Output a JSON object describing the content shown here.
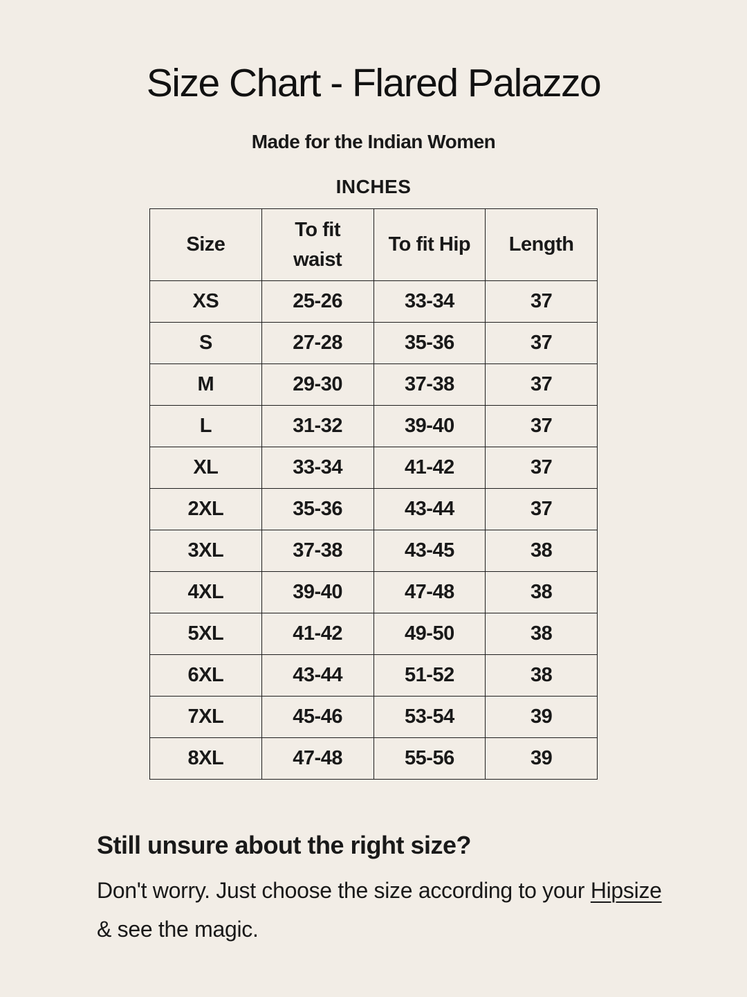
{
  "page": {
    "title": "Size Chart - Flared Palazzo",
    "subtitle": "Made for the Indian Women",
    "unit_label": "INCHES"
  },
  "size_table": {
    "columns": [
      "Size",
      "To fit waist",
      "To fit Hip",
      "Length"
    ],
    "rows": [
      [
        "XS",
        "25-26",
        "33-34",
        "37"
      ],
      [
        "S",
        "27-28",
        "35-36",
        "37"
      ],
      [
        "M",
        "29-30",
        "37-38",
        "37"
      ],
      [
        "L",
        "31-32",
        "39-40",
        "37"
      ],
      [
        "XL",
        "33-34",
        "41-42",
        "37"
      ],
      [
        "2XL",
        "35-36",
        "43-44",
        "37"
      ],
      [
        "3XL",
        "37-38",
        "43-45",
        "38"
      ],
      [
        "4XL",
        "39-40",
        "47-48",
        "38"
      ],
      [
        "5XL",
        "41-42",
        "49-50",
        "38"
      ],
      [
        "6XL",
        "43-44",
        "51-52",
        "38"
      ],
      [
        "7XL",
        "45-46",
        "53-54",
        "39"
      ],
      [
        "8XL",
        "47-48",
        "55-56",
        "39"
      ]
    ]
  },
  "footer": {
    "heading": "Still unsure about the right size?",
    "body_before": "Don't worry. Just choose the size according to your ",
    "link_text": "Hipsize",
    "body_after": " & see the magic."
  },
  "colors": {
    "background": "#f2ede6",
    "text": "#191919",
    "table_border": "#1f1f1f"
  }
}
